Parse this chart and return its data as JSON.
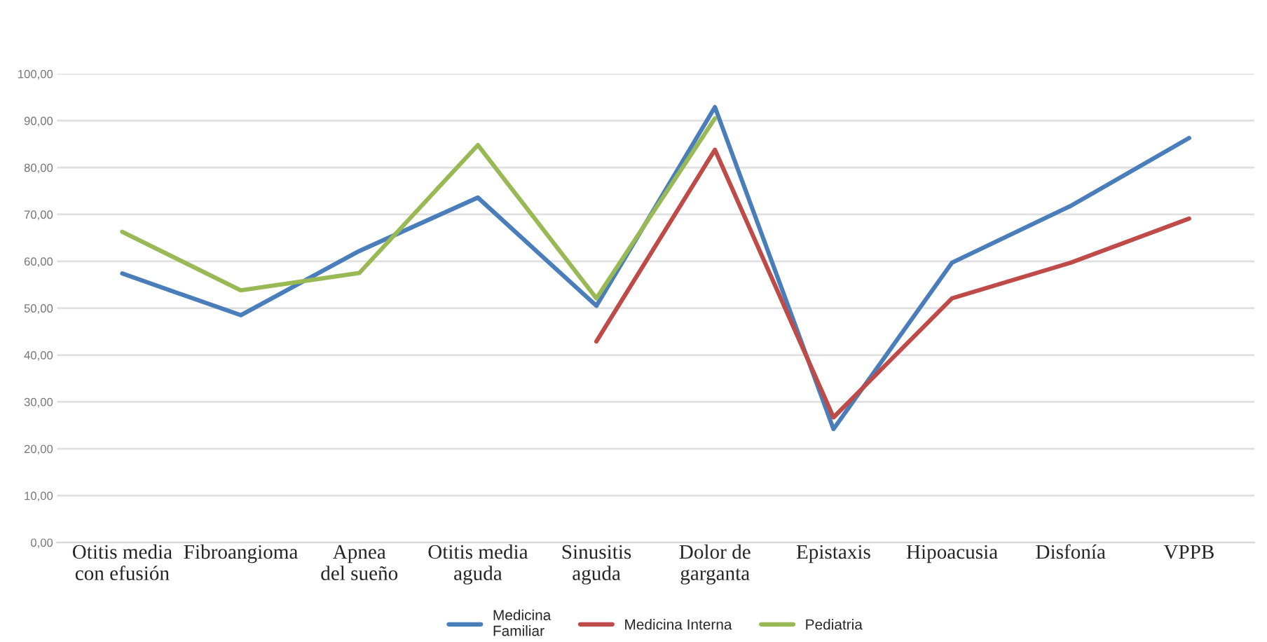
{
  "chart_data": {
    "type": "line",
    "categories": [
      "Otitis media\ncon efusión",
      "Fibroangioma",
      "Apnea\ndel sueño",
      "Otitis media\naguda",
      "Sinusitis\naguda",
      "Dolor de\ngarganta",
      "Epistaxis",
      "Hipoacusia",
      "Disfonía",
      "VPPB"
    ],
    "series": [
      {
        "name": "Medicina\nFamiliar",
        "color": "#4a7ebb",
        "values": [
          57.4,
          48.5,
          62.2,
          73.6,
          50.5,
          92.9,
          24.2,
          59.7,
          71.8,
          86.3
        ]
      },
      {
        "name": "Medicina Interna",
        "color": "#be4b48",
        "values": [
          null,
          null,
          null,
          null,
          42.9,
          83.8,
          26.7,
          52.1,
          59.7,
          69.1
        ]
      },
      {
        "name": "Pediatria",
        "color": "#98b954",
        "values": [
          66.3,
          53.8,
          57.5,
          84.8,
          52.1,
          90.5,
          null,
          null,
          null,
          null
        ]
      }
    ],
    "ylim": [
      0,
      100
    ],
    "yticks": [
      {
        "value": 0,
        "label": "0,00"
      },
      {
        "value": 10,
        "label": "10,00"
      },
      {
        "value": 20,
        "label": "20,00"
      },
      {
        "value": 30,
        "label": "30,00"
      },
      {
        "value": 40,
        "label": "40,00"
      },
      {
        "value": 50,
        "label": "50,00"
      },
      {
        "value": 60,
        "label": "60,00"
      },
      {
        "value": 70,
        "label": "70,00"
      },
      {
        "value": 80,
        "label": "80,00"
      },
      {
        "value": 90,
        "label": "90,00"
      },
      {
        "value": 100,
        "label": "100,00"
      }
    ],
    "grid": "y",
    "legend": "bottom",
    "marker": "none",
    "line_style": "solid"
  }
}
